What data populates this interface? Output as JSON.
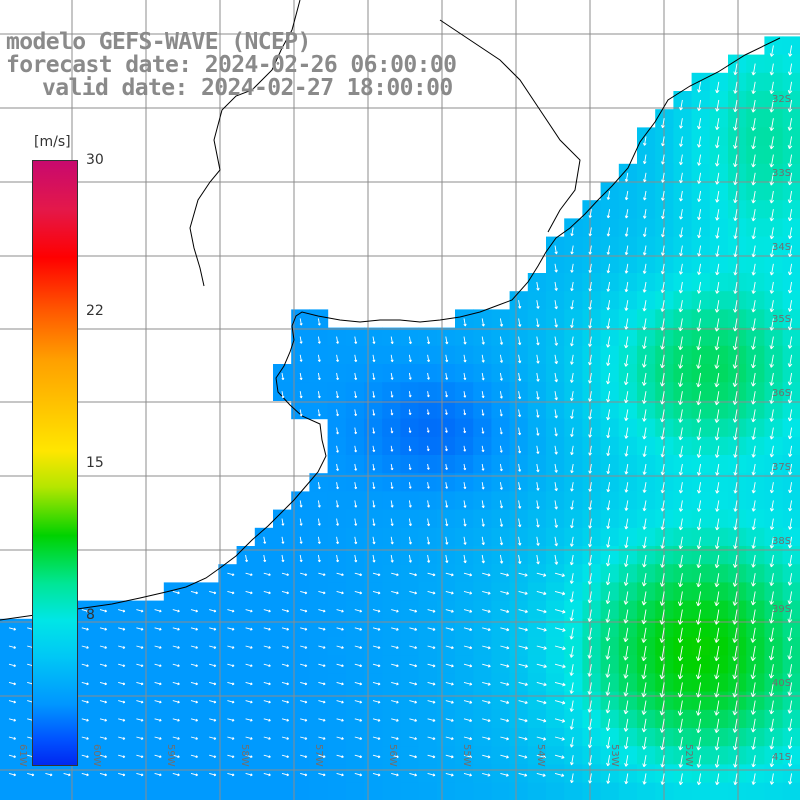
{
  "title": {
    "line1": "modelo GEFS-WAVE (NCEP)",
    "line2": "forecast date: 2024-02-26 06:00:00",
    "line3": "valid date: 2024-02-27 18:00:00"
  },
  "colorbar": {
    "unit": "[m/s]",
    "ticks": [
      "30",
      "22",
      "15",
      "8"
    ],
    "colors": [
      "#c8096e",
      "#ff0000",
      "#ffa000",
      "#ffe600",
      "#00d200",
      "#00e6e6",
      "#0096ff",
      "#0028f0"
    ]
  },
  "lat_labels": [
    "32S",
    "33S",
    "34S",
    "35S",
    "36S",
    "37S",
    "38S",
    "39S",
    "40S",
    "41S"
  ],
  "lon_labels": [
    "61W",
    "60W",
    "59W",
    "58W",
    "57W",
    "56W",
    "55W",
    "54W",
    "53W",
    "52W"
  ],
  "map": {
    "land_color": "#ffffff",
    "grid_color": "#8c8c8c",
    "coast_color": "#000000",
    "arrow_color": "#ffffff",
    "wind_range": [
      0,
      30
    ]
  }
}
